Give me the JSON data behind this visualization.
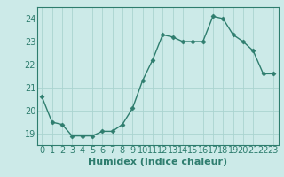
{
  "x": [
    0,
    1,
    2,
    3,
    4,
    5,
    6,
    7,
    8,
    9,
    10,
    11,
    12,
    13,
    14,
    15,
    16,
    17,
    18,
    19,
    20,
    21,
    22,
    23
  ],
  "y": [
    20.6,
    19.5,
    19.4,
    18.9,
    18.9,
    18.9,
    19.1,
    19.1,
    19.4,
    20.1,
    21.3,
    22.2,
    23.3,
    23.2,
    23.0,
    23.0,
    23.0,
    24.1,
    24.0,
    23.3,
    23.0,
    22.6,
    21.6,
    21.6
  ],
  "line_color": "#2e7d6e",
  "bg_color": "#cceae8",
  "grid_color": "#aad4d0",
  "tick_label_color": "#2e7d6e",
  "xlabel": "Humidex (Indice chaleur)",
  "ylim": [
    18.5,
    24.5
  ],
  "xlim": [
    -0.5,
    23.5
  ],
  "yticks": [
    19,
    20,
    21,
    22,
    23,
    24
  ],
  "xticks": [
    0,
    1,
    2,
    3,
    4,
    5,
    6,
    7,
    8,
    9,
    10,
    11,
    12,
    13,
    14,
    15,
    16,
    17,
    18,
    19,
    20,
    21,
    22,
    23
  ],
  "marker": "D",
  "markersize": 2.5,
  "linewidth": 1.0,
  "tick_fontsize": 7.0,
  "xlabel_fontsize": 8.0
}
